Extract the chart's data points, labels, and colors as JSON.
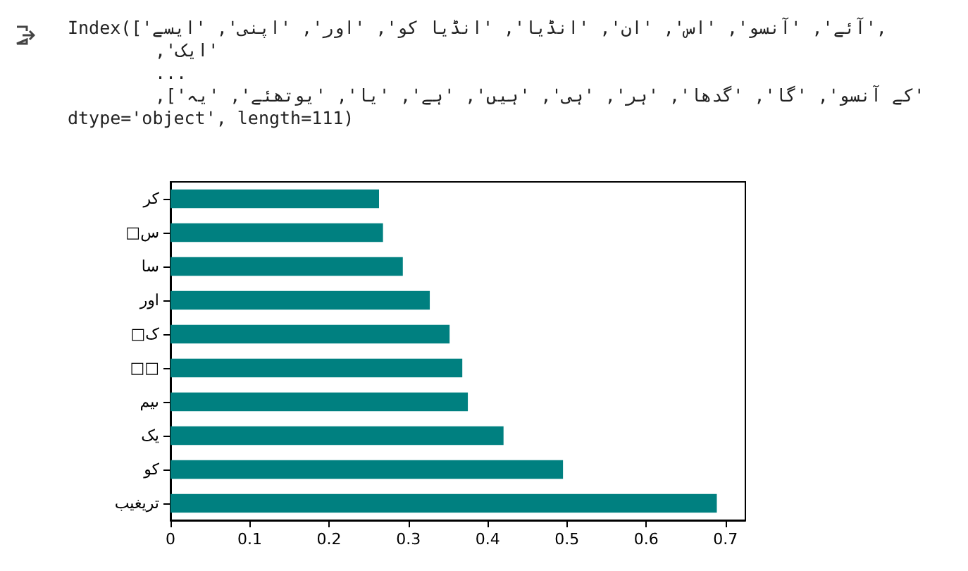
{
  "chart_data": {
    "type": "bar",
    "orientation": "horizontal",
    "categories": [
      "کر",
      "□س",
      "سا",
      "اور",
      "□ک",
      "□□",
      "ںیم",
      "یک",
      "کو",
      "تریغیب"
    ],
    "values": [
      0.263,
      0.268,
      0.293,
      0.327,
      0.352,
      0.368,
      0.375,
      0.42,
      0.495,
      0.689
    ],
    "color": "#008080",
    "xlim": [
      0,
      0.725
    ],
    "xticks": [
      0,
      0.1,
      0.2,
      0.3,
      0.4,
      0.5,
      0.6,
      0.7
    ],
    "grid": false,
    "annotations": [
      "Index(['آئے', 'آنسو', 'اس', 'ان', 'انڈیا', 'انڈیا کو', 'اور', 'اپنی', 'ایسے',",
      "'ایک',",
      "...",
      "'کے آنسو', 'گا', 'گدھا', 'ہر', 'ہی', 'ہیں', 'ہے', 'یا', 'یوتھئے', 'یہ'],",
      "dtype='object', length=111)"
    ]
  }
}
